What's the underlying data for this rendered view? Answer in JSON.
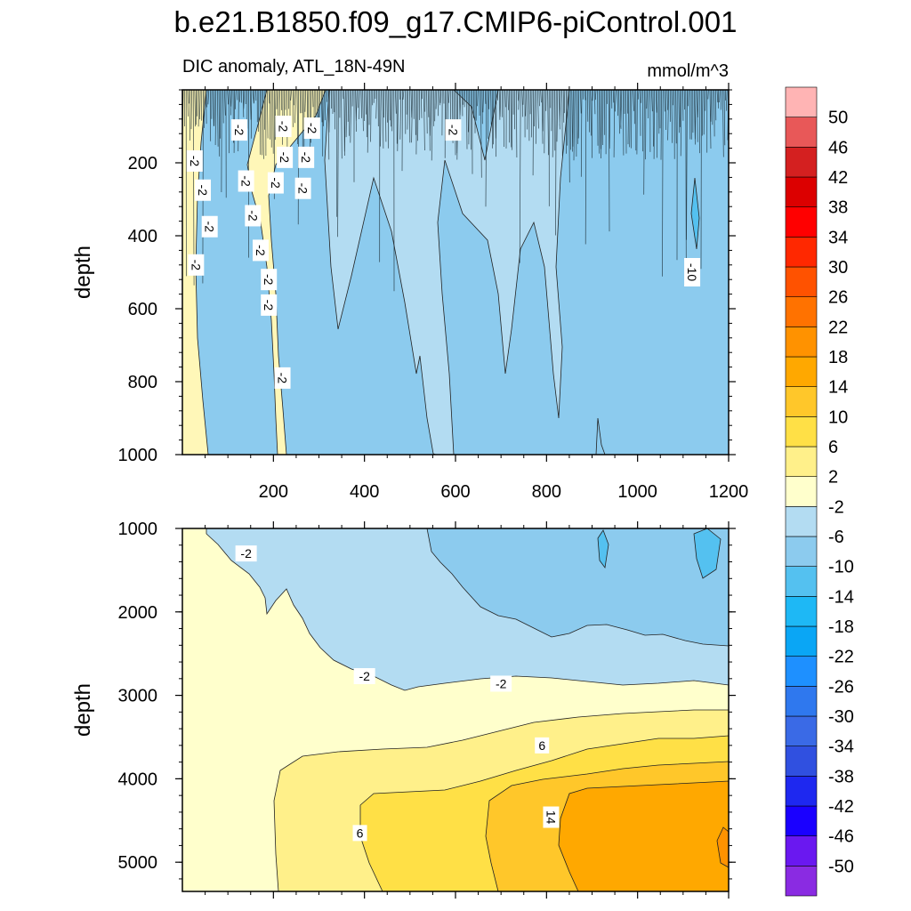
{
  "chart_data": {
    "type": "heatmap",
    "title": "b.e21.B1850.f09_g17.CMIP6-piControl.001",
    "subtitle_left": "DIC anomaly, ATL_18N-49N",
    "units": "mmol/m^3",
    "xlabel": "",
    "ylabel": "depth",
    "xlim": [
      0,
      1200
    ],
    "x_ticks": [
      200,
      400,
      600,
      800,
      1000,
      1200
    ],
    "panels": [
      {
        "name": "upper",
        "ylim": [
          1000,
          0
        ],
        "y_ticks": [
          200,
          400,
          600,
          800,
          1000
        ],
        "contour_labels": [
          {
            "text": "-2",
            "x": 27,
            "y": 195
          },
          {
            "text": "-2",
            "x": 45,
            "y": 275
          },
          {
            "text": "-2",
            "x": 60,
            "y": 375
          },
          {
            "text": "-2",
            "x": 30,
            "y": 480
          },
          {
            "text": "-2",
            "x": 125,
            "y": 110
          },
          {
            "text": "-2",
            "x": 140,
            "y": 250
          },
          {
            "text": "-2",
            "x": 155,
            "y": 345
          },
          {
            "text": "-2",
            "x": 172,
            "y": 440
          },
          {
            "text": "-2",
            "x": 190,
            "y": 520
          },
          {
            "text": "-2",
            "x": 190,
            "y": 590
          },
          {
            "text": "-2",
            "x": 205,
            "y": 255
          },
          {
            "text": "-2",
            "x": 222,
            "y": 100
          },
          {
            "text": "-2",
            "x": 225,
            "y": 185
          },
          {
            "text": "-2",
            "x": 265,
            "y": 270
          },
          {
            "text": "-2",
            "x": 272,
            "y": 185
          },
          {
            "text": "-2",
            "x": 285,
            "y": 105
          },
          {
            "text": "-2",
            "x": 595,
            "y": 110
          },
          {
            "text": "-2",
            "x": 220,
            "y": 790
          },
          {
            "text": "-10",
            "x": 1120,
            "y": 500
          }
        ]
      },
      {
        "name": "lower",
        "ylim": [
          5350,
          1000
        ],
        "y_ticks": [
          1000,
          2000,
          3000,
          4000,
          5000
        ],
        "contour_labels": [
          {
            "text": "-2",
            "x": 140,
            "y": 1300
          },
          {
            "text": "-2",
            "x": 400,
            "y": 2770
          },
          {
            "text": "-2",
            "x": 700,
            "y": 2860
          },
          {
            "text": "6",
            "x": 790,
            "y": 3600
          },
          {
            "text": "6",
            "x": 390,
            "y": 4650
          },
          {
            "text": "14",
            "x": 810,
            "y": 4460
          }
        ]
      }
    ],
    "colorbar": {
      "levels": [
        -50,
        -46,
        -42,
        -38,
        -34,
        -30,
        -26,
        -22,
        -18,
        -14,
        -10,
        -6,
        -2,
        2,
        6,
        10,
        14,
        18,
        22,
        26,
        30,
        34,
        38,
        42,
        46,
        50
      ],
      "colors": [
        "#8a2be2",
        "#6a18f0",
        "#1a00ff",
        "#1e28f0",
        "#3050e0",
        "#3a6ae6",
        "#2f78ee",
        "#1e90ff",
        "#0aa6f5",
        "#1eb8f5",
        "#54c1f0",
        "#8ccbee",
        "#b3dcf2",
        "#ffffcc",
        "#fff08a",
        "#ffe046",
        "#ffc72a",
        "#ffa800",
        "#ff9200",
        "#ff7200",
        "#ff5200",
        "#ff2800",
        "#ff0000",
        "#dc0000",
        "#d42020",
        "#e85858",
        "#ffb4b4"
      ]
    }
  }
}
